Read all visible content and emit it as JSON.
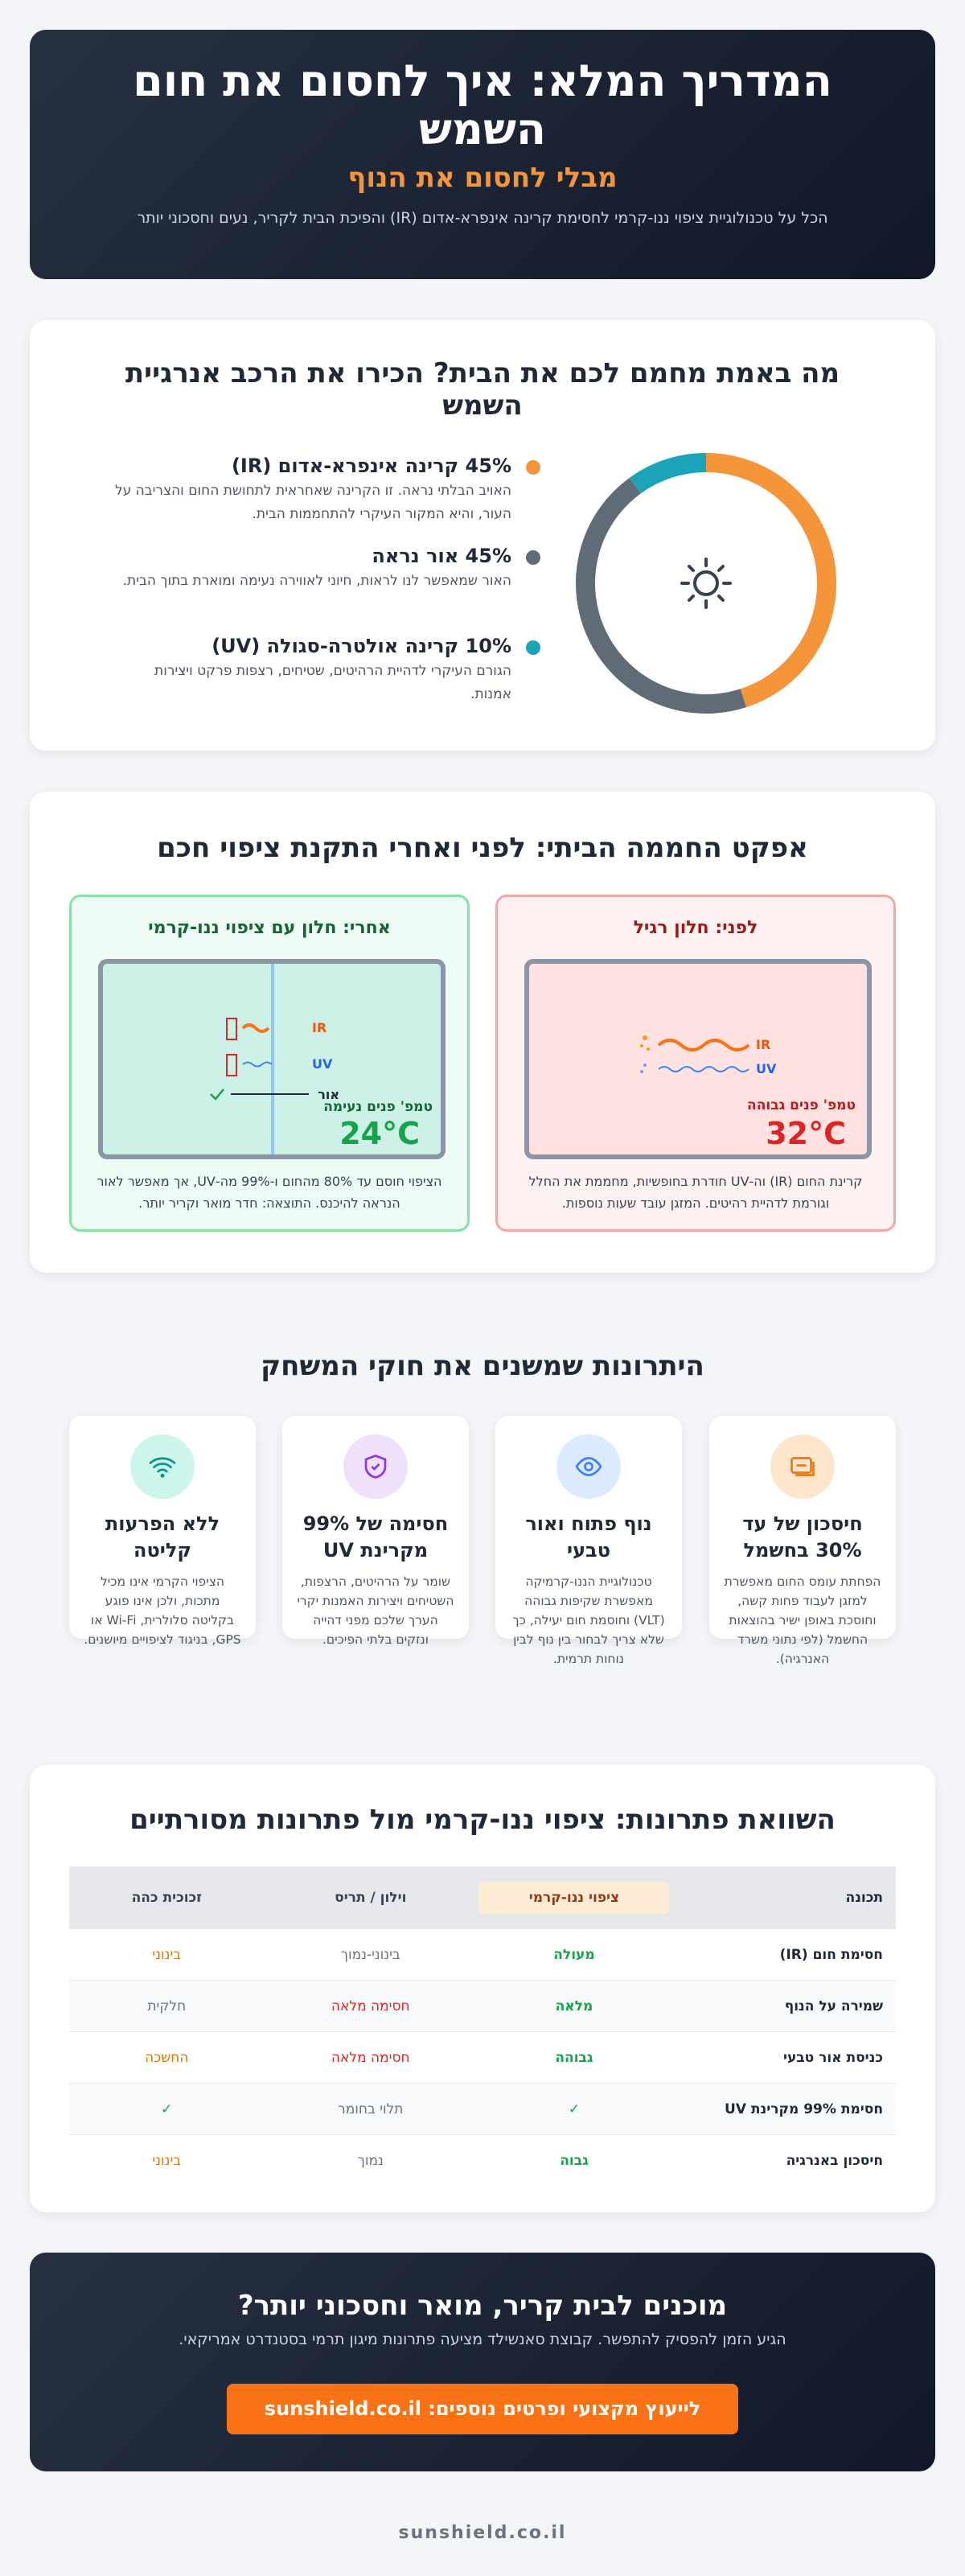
{
  "hero": {
    "title": "המדריך המלא: איך לחסום את חום השמש",
    "subtitle": "מבלי לחסום את הנוף",
    "description": "הכל על טכנולוגיית ציפוי ננו-קרמי לחסימת קרינה אינפרא-אדום (IR) והפיכת הבית לקריר, נעים וחסכוני יותר"
  },
  "energy": {
    "title": "מה באמת מחמם לכם את הבית? הכירו את הרכב אנרגיית השמש",
    "segments": [
      {
        "value": 45,
        "value_label": "45%",
        "name": "קרינה אינפרא-אדום (IR)",
        "description": "האויב הבלתי נראה. זו הקרינה שאחראית לתחושת החום והצריבה על העור, והיא המקור העיקרי להתחממות הבית.",
        "color": "#f5953a"
      },
      {
        "value": 45,
        "value_label": "45%",
        "name": "אור נראה",
        "description": "האור שמאפשר לנו לראות, חיוני לאווירה נעימה ומוארת בתוך הבית.",
        "color": "#5f6b76"
      },
      {
        "value": 10,
        "value_label": "10%",
        "name": "קרינה אולטרה-סגולה (UV)",
        "description": "הגורם העיקרי לדהיית הרהיטים, שטיחים, רצפות פרקט ויצירות אמנות.",
        "color": "#1ba3b8"
      }
    ]
  },
  "greenhouse": {
    "title": "אפקט החממה הביתי: לפני ואחרי התקנת ציפוי חכם",
    "before": {
      "title": "לפני: חלון רגיל",
      "temp_label": "טמפ' פנים גבוהה",
      "temp": "32°C",
      "ir": "IR",
      "uv": "UV",
      "caption": "קרינת החום (IR) וה-UV חודרת בחופשיות, מחממת את החלל וגורמת לדהיית רהיטים. המזגן עובד שעות נוספות."
    },
    "after": {
      "title": "אחרי: חלון עם ציפוי ננו-קרמי",
      "temp_label": "טמפ' פנים נעימה",
      "temp": "24°C",
      "ir": "IR",
      "uv": "UV",
      "light": "אור",
      "caption": "הציפוי חוסם עד 80% מהחום ו-99% מה-UV, אך מאפשר לאור הנראה להיכנס. התוצאה: חדר מואר וקריר יותר."
    }
  },
  "benefits": {
    "title": "היתרונות שמשנים את חוקי המשחק",
    "items": [
      {
        "title": "חיסכון של עד 30% בחשמל",
        "text": "הפחתת עומס החום מאפשרת למזגן לעבוד פחות קשה, וחוסכת באופן ישיר בהוצאות החשמל (לפי נתוני משרד האנרגיה)."
      },
      {
        "title": "נוף פתוח ואור טבעי",
        "text": "טכנולוגיית הננו-קרמיקה מאפשרת שקיפות גבוהה (VLT) וחוסמת חום יעילה, כך שלא צריך לבחור בין נוף לבין נוחות תרמית."
      },
      {
        "title": "חסימה של 99% מקרינת UV",
        "text": "שומר על הרהיטים, הרצפות, השטיחים ויצירות האמנות יקרי הערך שלכם מפני דהייה ונזקים בלתי הפיכים."
      },
      {
        "title": "ללא הפרעות קליטה",
        "text": "הציפוי הקרמי אינו מכיל מתכות, ולכן אינו פוגע בקליטה סלולרית, Wi-Fi או GPS, בניגוד לציפויים מיושנים."
      }
    ]
  },
  "comparison": {
    "title": "השוואת פתרונות: ציפוי ננו-קרמי מול פתרונות מסורתיים",
    "columns": [
      "תכונה",
      "ציפוי ננו-קרמי",
      "וילון / תריס",
      "זכוכית כהה"
    ],
    "rows": [
      [
        "חסימת חום (IR)",
        "מעולה",
        "בינוני-נמוך",
        "בינוני"
      ],
      [
        "שמירה על הנוף",
        "מלאה",
        "חסימה מלאה",
        "חלקית"
      ],
      [
        "כניסת אור טבעי",
        "גבוהה",
        "חסימה מלאה",
        "החשכה"
      ],
      [
        "חסימת 99% מקרינת UV",
        "✓",
        "תלוי בחומר",
        "✓"
      ],
      [
        "חיסכון באנרגיה",
        "גבוה",
        "נמוך",
        "בינוני"
      ]
    ]
  },
  "cta": {
    "title": "מוכנים לבית קריר, מואר וחסכוני יותר?",
    "text": "הגיע הזמן להפסיק להתפשר. קבוצת סאנשילד מציעה פתרונות מיגון תרמי בסטנדרט אמריקאי.",
    "button": "לייעוץ מקצועי ופרטים נוספים: sunshield.co.il"
  },
  "footer": "sunshield.co.il"
}
